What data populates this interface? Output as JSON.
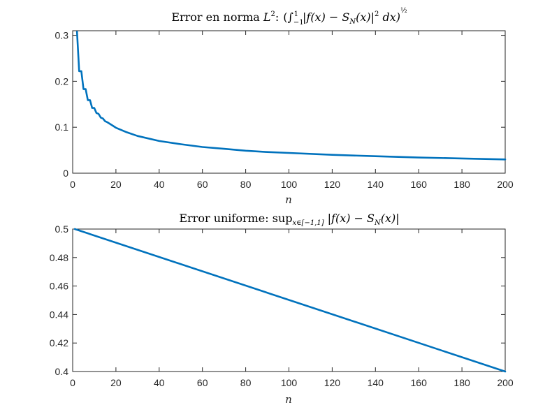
{
  "chart_data": [
    {
      "type": "line",
      "title": "Error en norma L²: (∫₋₁¹ |f(x) − S_N(x)|² dx)^½",
      "title_parts": {
        "lead": "Error en norma ",
        "norm_symbol": "L",
        "norm_exponent": "2",
        "colon": ":",
        "formula": "(∫",
        "integral_lower": "−1",
        "integral_upper": "1",
        "integrand": "|f(x) − S",
        "subscript": "N",
        "integrand_tail": "(x)|",
        "power": "2",
        "differential": " dx)",
        "outer_exponent": "½"
      },
      "xlabel": "n",
      "ylabel": "",
      "xlim": [
        0,
        200
      ],
      "ylim": [
        0,
        0.31
      ],
      "xticks": [
        0,
        20,
        40,
        60,
        80,
        100,
        120,
        140,
        160,
        180,
        200
      ],
      "yticks": [
        0,
        0.1,
        0.2,
        0.3
      ],
      "ytick_labels": [
        "0",
        "0.1",
        "0.2",
        "0.3"
      ],
      "grid": false,
      "series": [
        {
          "color": "#0072BD",
          "x": [
            2,
            3,
            4,
            5,
            6,
            7,
            8,
            9,
            10,
            11,
            12,
            13,
            14,
            15,
            16,
            18,
            20,
            25,
            30,
            40,
            50,
            60,
            70,
            80,
            90,
            100,
            120,
            140,
            160,
            180,
            200
          ],
          "y": [
            0.308,
            0.222,
            0.222,
            0.183,
            0.183,
            0.159,
            0.159,
            0.142,
            0.142,
            0.131,
            0.129,
            0.121,
            0.119,
            0.113,
            0.111,
            0.105,
            0.099,
            0.089,
            0.081,
            0.07,
            0.063,
            0.057,
            0.053,
            0.049,
            0.046,
            0.044,
            0.04,
            0.037,
            0.034,
            0.032,
            0.03
          ]
        }
      ]
    },
    {
      "type": "line",
      "title": "Error uniforme: sup_{x∈[−1,1]} |f(x) − S_N(x)|",
      "title_parts": {
        "lead": "Error uniforme: ",
        "sup": "sup",
        "sup_subscript": "x∈[−1,1]",
        "body": "|f(x) − S",
        "subscript": "N",
        "tail": "(x)|"
      },
      "xlabel": "n",
      "ylabel": "",
      "xlim": [
        0,
        200
      ],
      "ylim": [
        0.4,
        0.5
      ],
      "xticks": [
        0,
        20,
        40,
        60,
        80,
        100,
        120,
        140,
        160,
        180,
        200
      ],
      "yticks": [
        0.4,
        0.42,
        0.44,
        0.46,
        0.48,
        0.5
      ],
      "ytick_labels": [
        "0.4",
        "0.42",
        "0.44",
        "0.46",
        "0.48",
        "0.5"
      ],
      "grid": false,
      "series": [
        {
          "color": "#0072BD",
          "x": [
            1,
            200
          ],
          "y": [
            0.5,
            0.4
          ]
        }
      ]
    }
  ]
}
